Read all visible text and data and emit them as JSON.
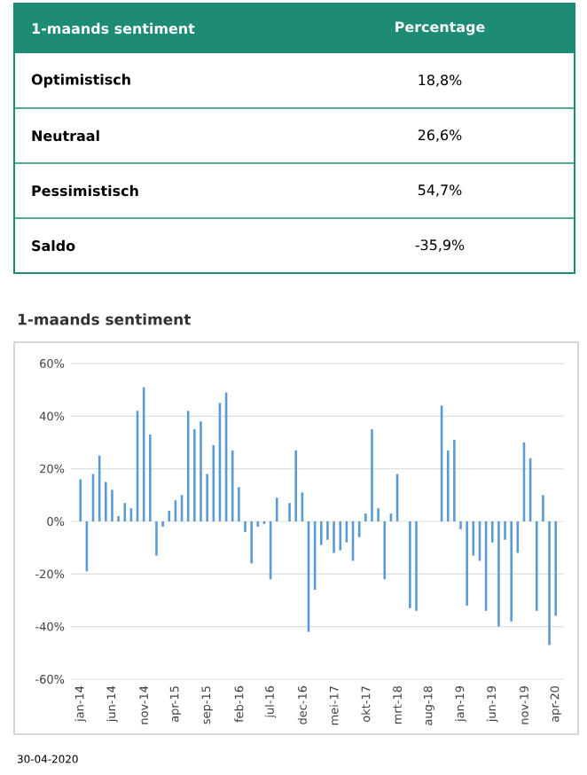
{
  "chart_data": [
    {
      "type": "other",
      "annotations": [
        "1-maands sentiment",
        "Percentage"
      ],
      "categories": [
        "Optimistisch",
        "Neutraal",
        "Pessimistisch",
        "Saldo"
      ],
      "value_labels": [
        "18,8%",
        "26,6%",
        "54,7%",
        "-35,9%"
      ],
      "color": "#1e8c74"
    },
    {
      "type": "bar",
      "title": "1-maands sentiment",
      "annotations": [
        "30-04-2020"
      ],
      "color": "#5b9bd5",
      "grid": "y",
      "categories": [
        "jan-14",
        null,
        null,
        null,
        null,
        "jun-14",
        null,
        null,
        null,
        null,
        "nov-14",
        null,
        null,
        null,
        null,
        "apr-15",
        null,
        null,
        null,
        null,
        "sep-15",
        null,
        null,
        null,
        null,
        "feb-16",
        null,
        null,
        null,
        null,
        "jul-16",
        null,
        null,
        null,
        null,
        "dec-16",
        null,
        null,
        null,
        null,
        "mei-17",
        null,
        null,
        null,
        null,
        "okt-17",
        null,
        null,
        null,
        null,
        "mrt-18",
        null,
        null,
        null,
        null,
        "aug-18",
        null,
        null,
        null,
        null,
        "jan-19",
        null,
        null,
        null,
        null,
        "jun-19",
        null,
        null,
        null,
        null,
        "nov-19",
        null,
        null,
        null,
        null,
        "apr-20"
      ],
      "values": [
        16,
        -19,
        18,
        25,
        15,
        12,
        2,
        7,
        5,
        42,
        51,
        33,
        -13,
        -2,
        4,
        8,
        10,
        42,
        35,
        38,
        18,
        29,
        45,
        49,
        27,
        13,
        -4,
        -16,
        -2,
        -1,
        -22,
        9,
        0,
        7,
        27,
        11,
        -42,
        -26,
        -9,
        -7,
        -12,
        -11,
        -8,
        -15,
        -6,
        3,
        35,
        5,
        -22,
        3,
        18,
        0,
        -33,
        -34,
        0,
        0,
        0,
        44,
        27,
        31,
        -3,
        -32,
        -13,
        -15,
        -34,
        -8,
        -40,
        -7,
        -38,
        -12,
        30,
        24,
        -34,
        10,
        -47,
        -35.9
      ],
      "ylim": [
        -60,
        60
      ],
      "yticks": [
        {
          "value": -60,
          "label": "-60%"
        },
        {
          "value": -40,
          "label": "-40%"
        },
        {
          "value": -20,
          "label": "-20%"
        },
        {
          "value": 0,
          "label": "0%"
        },
        {
          "value": 20,
          "label": "20%"
        },
        {
          "value": 40,
          "label": "40%"
        },
        {
          "value": 60,
          "label": "60%"
        }
      ]
    }
  ]
}
